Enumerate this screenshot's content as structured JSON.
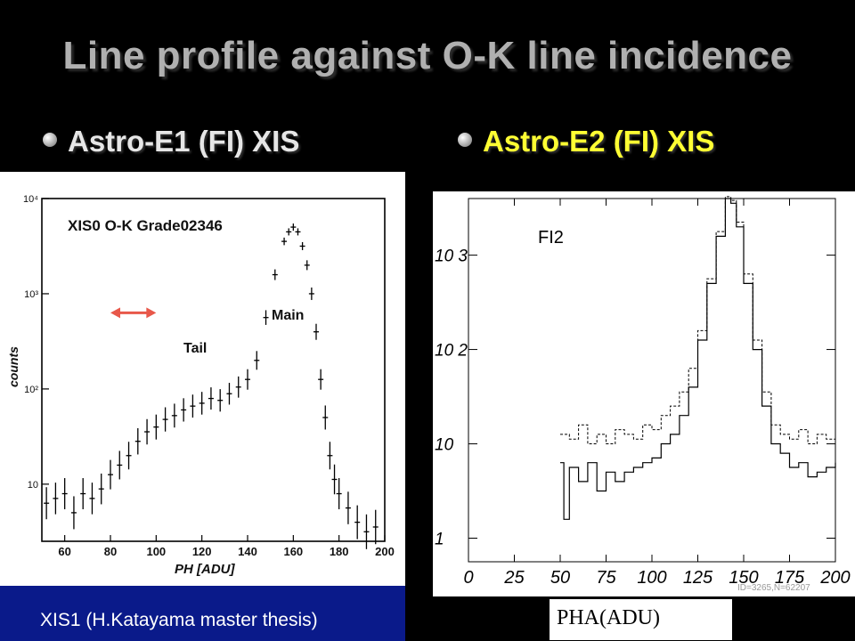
{
  "slide": {
    "title": "Line profile against O-K line incidence",
    "bullet_left": "Astro-E1 (FI) XIS",
    "bullet_right": "Astro-E2 (FI) XIS",
    "caption_left": "XIS1 (H.Katayama master thesis)",
    "caption_right": "PHA(ADU)",
    "colors": {
      "background": "#000000",
      "title": "#b0b0b0",
      "bullet_left": "#e6e6e6",
      "bullet_right": "#ffff33",
      "caption_band": "#0a1a8a",
      "arrow": "#e8584a"
    }
  },
  "chart_data": [
    {
      "type": "scatter",
      "title": "XIS0 O-K Grade02346",
      "xlabel": "PH [ADU]",
      "ylabel": "counts",
      "xlim": [
        50,
        200
      ],
      "ylim_log10": [
        0.4,
        4
      ],
      "y_scale": "log",
      "x_ticks": [
        60,
        80,
        100,
        120,
        140,
        160,
        180,
        200
      ],
      "y_ticks": [
        "10",
        "10²",
        "10³",
        "10⁴"
      ],
      "annotations": [
        "Main",
        "Tail"
      ],
      "arrow": {
        "from_x": 80,
        "to_x": 100,
        "at_log10_y": 2.8
      },
      "series": [
        {
          "x": [
            52,
            56,
            60,
            64,
            68,
            72,
            76,
            80,
            84,
            88,
            92,
            96,
            100,
            104,
            108,
            112,
            116,
            120,
            124,
            128,
            132,
            136,
            140,
            144,
            148,
            152,
            156,
            158,
            160,
            162,
            164,
            166,
            168,
            170,
            172,
            174,
            176,
            178,
            180,
            184,
            188,
            192,
            196
          ],
          "log10_counts": [
            0.8,
            0.85,
            0.9,
            0.7,
            0.9,
            0.85,
            0.95,
            1.1,
            1.2,
            1.3,
            1.45,
            1.55,
            1.6,
            1.68,
            1.72,
            1.78,
            1.82,
            1.85,
            1.9,
            1.88,
            1.95,
            2.02,
            2.1,
            2.3,
            2.75,
            3.2,
            3.55,
            3.65,
            3.7,
            3.65,
            3.5,
            3.3,
            3.0,
            2.6,
            2.1,
            1.7,
            1.3,
            1.05,
            0.9,
            0.75,
            0.6,
            0.5,
            0.55
          ]
        }
      ]
    },
    {
      "type": "line",
      "title": "FI2",
      "xlabel": "PHA(ADU)",
      "xlim": [
        0,
        200
      ],
      "ylim_log10": [
        -0.25,
        3.6
      ],
      "y_scale": "log",
      "x_ticks": [
        0,
        25,
        50,
        75,
        100,
        125,
        150,
        175,
        200
      ],
      "y_ticks": [
        "1",
        "10",
        "10 2",
        "10 3"
      ],
      "footer": "ID=3265,N=62207",
      "series": [
        {
          "style": "solid",
          "x": [
            50,
            52,
            55,
            60,
            65,
            70,
            75,
            80,
            85,
            90,
            95,
            100,
            105,
            110,
            115,
            120,
            125,
            130,
            135,
            140,
            143,
            146,
            150,
            155,
            160,
            165,
            170,
            175,
            180,
            185,
            190,
            195,
            200
          ],
          "log10_counts": [
            0.8,
            0.2,
            0.75,
            0.6,
            0.8,
            0.5,
            0.7,
            0.6,
            0.7,
            0.75,
            0.8,
            0.85,
            1.0,
            1.1,
            1.3,
            1.6,
            2.1,
            2.7,
            3.2,
            3.6,
            3.55,
            3.3,
            2.7,
            2.0,
            1.4,
            1.0,
            0.9,
            0.75,
            0.8,
            0.65,
            0.7,
            0.75,
            0.8
          ]
        },
        {
          "style": "dashed",
          "x": [
            50,
            55,
            60,
            65,
            70,
            75,
            80,
            85,
            90,
            95,
            100,
            105,
            110,
            115,
            120,
            125,
            130,
            135,
            140,
            143,
            146,
            150,
            155,
            160,
            165,
            170,
            175,
            180,
            185,
            190,
            195,
            200
          ],
          "log10_counts": [
            1.1,
            1.05,
            1.2,
            1.0,
            1.1,
            1.0,
            1.15,
            1.1,
            1.05,
            1.2,
            1.15,
            1.3,
            1.4,
            1.55,
            1.8,
            2.2,
            2.75,
            3.25,
            3.62,
            3.58,
            3.35,
            2.8,
            2.1,
            1.55,
            1.2,
            1.1,
            1.05,
            1.15,
            1.0,
            1.1,
            1.05,
            1.15
          ]
        }
      ]
    }
  ]
}
